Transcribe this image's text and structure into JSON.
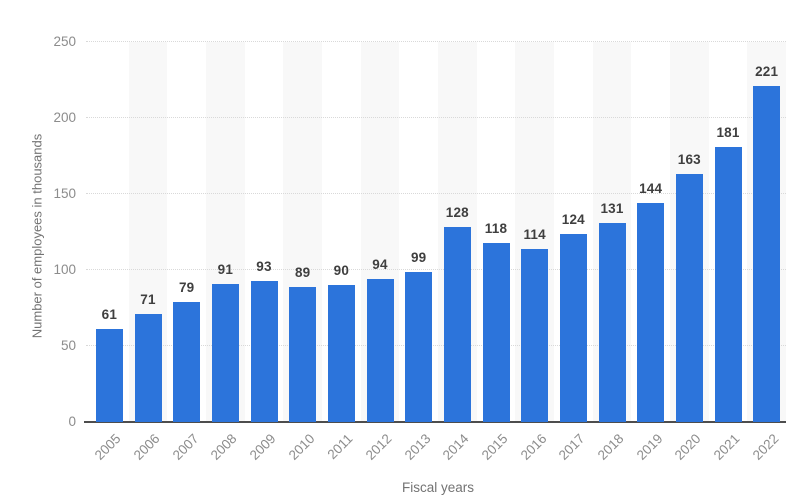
{
  "chart_data": {
    "type": "bar",
    "title": "",
    "categories": [
      "2005",
      "2006",
      "2007",
      "2008",
      "2009",
      "2010",
      "2011",
      "2012",
      "2013",
      "2014",
      "2015",
      "2016",
      "2017",
      "2018",
      "2019",
      "2020",
      "2021",
      "2022"
    ],
    "values": [
      61,
      71,
      79,
      91,
      93,
      89,
      90,
      94,
      99,
      128,
      118,
      114,
      124,
      131,
      144,
      163,
      181,
      221
    ],
    "xlabel": "Fiscal years",
    "ylabel": "Number of employees in thousands",
    "ylim": [
      0,
      250
    ],
    "yticks": [
      0,
      50,
      100,
      150,
      200,
      250
    ],
    "grid": "horizontal-dotted",
    "legend": "none",
    "colors": {
      "bar": "#2C74DB",
      "band": "#F8F8F8",
      "gridline": "#D9D9D9",
      "axis_line": "#4D4D4D",
      "tick_label": "#8C8C8C",
      "axis_title": "#737373",
      "value_label": "#3F3F3F",
      "background": "#FFFFFF"
    }
  }
}
